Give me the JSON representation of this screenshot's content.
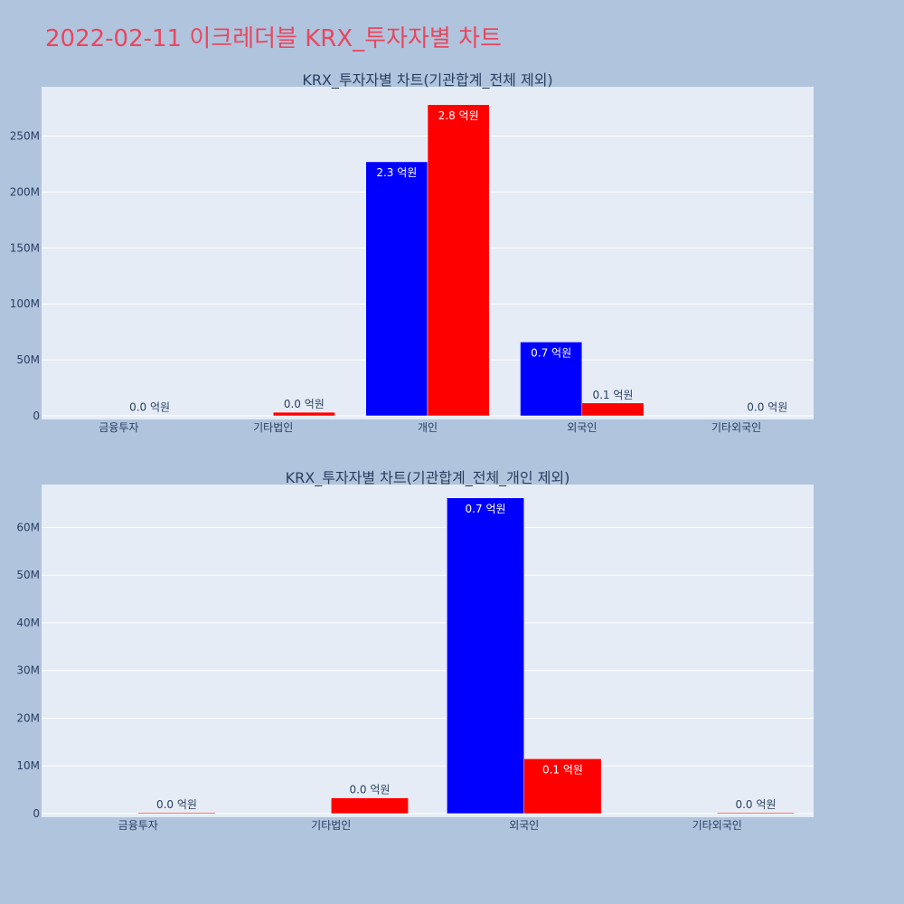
{
  "page_title": "2022-02-11 이크레더블 KRX_투자자별 차트",
  "colors": {
    "buy": "#0000ff",
    "sell": "#ff0000",
    "title": "#e8475f",
    "background": "#b0c4de",
    "plot_bg": "#e5ecf6"
  },
  "chart_data": [
    {
      "type": "bar",
      "title": "KRX_투자자별 차트(기관합계_전체 제외)",
      "categories": [
        "금융투자",
        "기타법인",
        "개인",
        "외국인",
        "기타외국인"
      ],
      "series": [
        {
          "color": "#0000ff",
          "values": [
            0,
            0,
            227000000,
            66000000,
            0
          ],
          "labels": [
            "",
            "",
            "2.3 억원",
            "0.7 억원",
            ""
          ]
        },
        {
          "color": "#ff0000",
          "values": [
            300000,
            3200000,
            278000000,
            11500000,
            300000
          ],
          "labels": [
            "0.0 억원",
            "0.0 억원",
            "2.8 억원",
            "0.1 억원",
            "0.0 억원"
          ]
        }
      ],
      "ylim": [
        0,
        294000000
      ],
      "yticks": [
        0,
        50000000,
        100000000,
        150000000,
        200000000,
        250000000
      ],
      "ytick_labels": [
        "0",
        "50M",
        "100M",
        "150M",
        "200M",
        "250M"
      ],
      "grid": true,
      "barmode": "group"
    },
    {
      "type": "bar",
      "title": "KRX_투자자별 차트(기관합계_전체_개인 제외)",
      "categories": [
        "금융투자",
        "기타법인",
        "외국인",
        "기타외국인"
      ],
      "series": [
        {
          "color": "#0000ff",
          "values": [
            0,
            0,
            66200000,
            0
          ],
          "labels": [
            "",
            "",
            "0.7 억원",
            ""
          ]
        },
        {
          "color": "#ff0000",
          "values": [
            200000,
            3300000,
            11500000,
            200000
          ],
          "labels": [
            "0.0 억원",
            "0.0 억원",
            "0.1 억원",
            "0.0 억원"
          ]
        }
      ],
      "ylim": [
        0,
        69000000
      ],
      "yticks": [
        0,
        10000000,
        20000000,
        30000000,
        40000000,
        50000000,
        60000000
      ],
      "ytick_labels": [
        "0",
        "10M",
        "20M",
        "30M",
        "40M",
        "50M",
        "60M"
      ],
      "grid": true,
      "barmode": "group"
    }
  ]
}
